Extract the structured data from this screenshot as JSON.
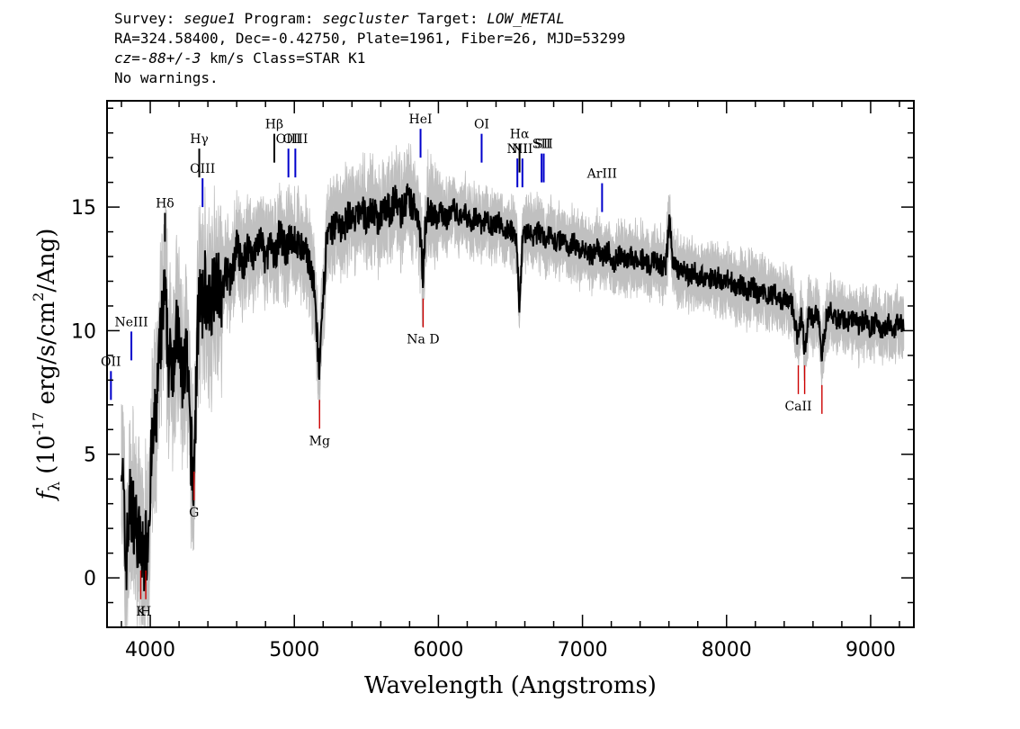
{
  "header": {
    "survey_label": "Survey: ",
    "survey": "segue1",
    "program_label": " Program: ",
    "program": "segcluster",
    "target_label": " Target: ",
    "target": "LOW_METAL",
    "line2": "RA=324.58400, Dec=-0.42750, Plate=1961, Fiber=26, MJD=53299",
    "cz_label": "cz=",
    "cz_value": "-88+/-3",
    "cz_rest": " km/s Class=STAR K1",
    "warnings": "No warnings."
  },
  "chart_data": {
    "type": "line",
    "xlabel": "Wavelength (Angstroms)",
    "ylabel": "fλ (10^-17 erg/s/cm^2/Ang)",
    "xlim": [
      3700,
      9300
    ],
    "ylim": [
      -2,
      19.3
    ],
    "x_ticks": [
      4000,
      5000,
      6000,
      7000,
      8000,
      9000
    ],
    "y_ticks": [
      0,
      5,
      10,
      15
    ],
    "grid": false,
    "colors": {
      "flux": "#000000",
      "error": "#c0c0c0",
      "emission": "#0000cc",
      "absorption": "#cc0000",
      "marked": "#000000"
    },
    "series": [
      {
        "values": [
          [
            3800,
            5.5
          ],
          [
            3830,
            0.5
          ],
          [
            3860,
            3.0
          ],
          [
            3890,
            2.5
          ],
          [
            3920,
            1.5
          ],
          [
            3950,
            0.8
          ],
          [
            3980,
            1.5
          ],
          [
            4010,
            5.0
          ],
          [
            4040,
            6.5
          ],
          [
            4070,
            9.5
          ],
          [
            4100,
            11.5
          ],
          [
            4130,
            8.5
          ],
          [
            4160,
            9.0
          ],
          [
            4190,
            10.0
          ],
          [
            4220,
            8.0
          ],
          [
            4250,
            9.0
          ],
          [
            4280,
            5.5
          ],
          [
            4300,
            3.5
          ],
          [
            4320,
            8.0
          ],
          [
            4340,
            12.0
          ],
          [
            4360,
            10.5
          ],
          [
            4380,
            12.0
          ],
          [
            4400,
            10.5
          ],
          [
            4430,
            11.5
          ],
          [
            4460,
            12.5
          ],
          [
            4490,
            11.0
          ],
          [
            4520,
            12.5
          ],
          [
            4560,
            12.0
          ],
          [
            4600,
            13.5
          ],
          [
            4640,
            12.5
          ],
          [
            4680,
            13.5
          ],
          [
            4720,
            13.0
          ],
          [
            4760,
            13.8
          ],
          [
            4800,
            12.8
          ],
          [
            4830,
            13.5
          ],
          [
            4860,
            12.8
          ],
          [
            4900,
            14.0
          ],
          [
            4940,
            13.2
          ],
          [
            4980,
            13.8
          ],
          [
            5020,
            13.5
          ],
          [
            5060,
            13.2
          ],
          [
            5100,
            13.0
          ],
          [
            5140,
            11.5
          ],
          [
            5160,
            9.5
          ],
          [
            5175,
            8.2
          ],
          [
            5190,
            10.0
          ],
          [
            5220,
            13.5
          ],
          [
            5260,
            14.0
          ],
          [
            5300,
            14.5
          ],
          [
            5340,
            14.0
          ],
          [
            5380,
            14.8
          ],
          [
            5420,
            14.3
          ],
          [
            5460,
            15.0
          ],
          [
            5500,
            14.5
          ],
          [
            5540,
            15.0
          ],
          [
            5580,
            14.3
          ],
          [
            5620,
            15.2
          ],
          [
            5660,
            14.8
          ],
          [
            5700,
            15.3
          ],
          [
            5740,
            14.8
          ],
          [
            5780,
            15.3
          ],
          [
            5820,
            15.0
          ],
          [
            5860,
            14.8
          ],
          [
            5880,
            13.5
          ],
          [
            5893,
            12.0
          ],
          [
            5910,
            14.5
          ],
          [
            5940,
            15.0
          ],
          [
            5980,
            14.5
          ],
          [
            6020,
            14.8
          ],
          [
            6060,
            14.5
          ],
          [
            6100,
            15.0
          ],
          [
            6140,
            14.6
          ],
          [
            6180,
            14.8
          ],
          [
            6220,
            14.4
          ],
          [
            6260,
            14.6
          ],
          [
            6300,
            14.3
          ],
          [
            6340,
            14.5
          ],
          [
            6380,
            14.2
          ],
          [
            6420,
            14.4
          ],
          [
            6460,
            14.0
          ],
          [
            6500,
            14.2
          ],
          [
            6540,
            13.5
          ],
          [
            6563,
            11.0
          ],
          [
            6585,
            13.8
          ],
          [
            6620,
            14.0
          ],
          [
            6660,
            13.8
          ],
          [
            6700,
            14.0
          ],
          [
            6740,
            13.7
          ],
          [
            6780,
            13.9
          ],
          [
            6820,
            13.5
          ],
          [
            6860,
            13.8
          ],
          [
            6900,
            13.4
          ],
          [
            6940,
            13.6
          ],
          [
            6980,
            13.2
          ],
          [
            7020,
            13.4
          ],
          [
            7060,
            13.0
          ],
          [
            7100,
            13.3
          ],
          [
            7140,
            13.0
          ],
          [
            7180,
            13.2
          ],
          [
            7220,
            12.8
          ],
          [
            7260,
            13.1
          ],
          [
            7300,
            12.9
          ],
          [
            7340,
            13.0
          ],
          [
            7380,
            12.7
          ],
          [
            7420,
            12.9
          ],
          [
            7460,
            12.6
          ],
          [
            7500,
            12.8
          ],
          [
            7540,
            12.6
          ],
          [
            7580,
            12.7
          ],
          [
            7605,
            14.8
          ],
          [
            7625,
            12.6
          ],
          [
            7660,
            12.5
          ],
          [
            7700,
            12.5
          ],
          [
            7740,
            12.2
          ],
          [
            7780,
            12.4
          ],
          [
            7820,
            12.1
          ],
          [
            7860,
            12.3
          ],
          [
            7900,
            12.0
          ],
          [
            7940,
            12.2
          ],
          [
            7980,
            11.9
          ],
          [
            8020,
            12.1
          ],
          [
            8060,
            11.7
          ],
          [
            8100,
            11.9
          ],
          [
            8140,
            11.6
          ],
          [
            8180,
            11.8
          ],
          [
            8220,
            11.4
          ],
          [
            8260,
            11.6
          ],
          [
            8300,
            11.3
          ],
          [
            8340,
            11.5
          ],
          [
            8380,
            11.2
          ],
          [
            8420,
            11.4
          ],
          [
            8460,
            11.0
          ],
          [
            8498,
            9.5
          ],
          [
            8520,
            10.8
          ],
          [
            8542,
            9.0
          ],
          [
            8570,
            10.8
          ],
          [
            8600,
            10.5
          ],
          [
            8640,
            10.7
          ],
          [
            8662,
            9.0
          ],
          [
            8690,
            10.5
          ],
          [
            8720,
            10.8
          ],
          [
            8760,
            10.4
          ],
          [
            8800,
            10.6
          ],
          [
            8840,
            10.3
          ],
          [
            8880,
            10.6
          ],
          [
            8920,
            10.2
          ],
          [
            8960,
            10.5
          ],
          [
            9000,
            10.1
          ],
          [
            9040,
            10.4
          ],
          [
            9080,
            10.0
          ],
          [
            9120,
            10.3
          ],
          [
            9160,
            10.1
          ],
          [
            9200,
            10.4
          ],
          [
            9230,
            10.0
          ]
        ]
      }
    ],
    "emission_lines": [
      {
        "label": "OII",
        "wavelength": 3727,
        "flux": 7.2
      },
      {
        "label": "NeIII",
        "wavelength": 3869,
        "flux": 8.8
      },
      {
        "label": "Hδ",
        "wavelength": 4102,
        "flux": 13.6
      },
      {
        "label": "Hγ",
        "wavelength": 4340,
        "flux": 16.2
      },
      {
        "label": "OIII",
        "wavelength": 4363,
        "flux": 15.0
      },
      {
        "label": "Hβ",
        "wavelength": 4861,
        "flux": 16.8
      },
      {
        "label": "OIII",
        "wavelength": 4959,
        "flux": 16.2
      },
      {
        "label": "OIII",
        "wavelength": 5007,
        "flux": 16.2
      },
      {
        "label": "HeI",
        "wavelength": 5876,
        "flux": 17.0
      },
      {
        "label": "OI",
        "wavelength": 6300,
        "flux": 16.8
      },
      {
        "label": "NII",
        "wavelength": 6548,
        "flux": 15.8
      },
      {
        "label": "Hα",
        "wavelength": 6563,
        "flux": 16.4
      },
      {
        "label": "NII",
        "wavelength": 6583,
        "flux": 15.8
      },
      {
        "label": "SII",
        "wavelength": 6716,
        "flux": 16.0
      },
      {
        "label": "SII",
        "wavelength": 6731,
        "flux": 16.0
      },
      {
        "label": "ArIII",
        "wavelength": 7136,
        "flux": 14.8
      }
    ],
    "absorption_lines": [
      {
        "label": "K",
        "wavelength": 3934,
        "flux": 0.3
      },
      {
        "label": "H",
        "wavelength": 3969,
        "flux": 0.3
      },
      {
        "label": "G",
        "wavelength": 4304,
        "flux": 4.3
      },
      {
        "label": "Mg",
        "wavelength": 5175,
        "flux": 7.2
      },
      {
        "label": "Na D",
        "wavelength": 5894,
        "flux": 11.3
      },
      {
        "label": "CaII",
        "wavelength": 8498,
        "flux": 8.6
      },
      {
        "label": "CaII",
        "wavelength": 8542,
        "flux": 8.6
      },
      {
        "label": "CaII",
        "wavelength": 8662,
        "flux": 7.8
      }
    ]
  }
}
